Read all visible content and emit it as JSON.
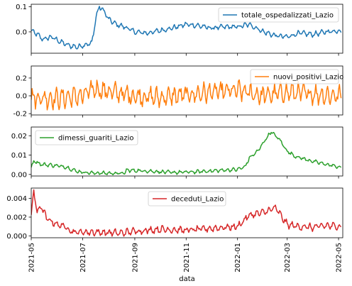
{
  "chart_data": {
    "type": "line",
    "xlabel": "data",
    "x_ticks": [
      "2021-05",
      "2021-07",
      "2021-09",
      "2021-11",
      "2022-01",
      "2022-03",
      "2022-05"
    ],
    "x_range": [
      "2021-05-01",
      "2022-05-06"
    ],
    "shared_x": true,
    "panels": [
      {
        "series": [
          {
            "name": "totale_ospedalizzati_Lazio",
            "color": "#1f77b4",
            "start": "2021-05-01",
            "end": "2022-05-04",
            "knots": [
              [
                "2021-05-01",
                0.005
              ],
              [
                "2021-05-08",
                -0.01
              ],
              [
                "2021-05-15",
                -0.03
              ],
              [
                "2021-05-25",
                -0.02
              ],
              [
                "2021-06-05",
                -0.04
              ],
              [
                "2021-06-15",
                -0.055
              ],
              [
                "2021-06-25",
                -0.06
              ],
              [
                "2021-07-05",
                -0.05
              ],
              [
                "2021-07-12",
                -0.045
              ],
              [
                "2021-07-17",
                0.06
              ],
              [
                "2021-07-21",
                0.1
              ],
              [
                "2021-07-26",
                0.085
              ],
              [
                "2021-08-01",
                0.05
              ],
              [
                "2021-08-10",
                0.03
              ],
              [
                "2021-08-20",
                0.02
              ],
              [
                "2021-09-01",
                0.0
              ],
              [
                "2021-09-15",
                -0.005
              ],
              [
                "2021-10-01",
                0.005
              ],
              [
                "2021-10-15",
                0.015
              ],
              [
                "2021-11-01",
                0.03
              ],
              [
                "2021-11-15",
                0.025
              ],
              [
                "2021-12-01",
                0.015
              ],
              [
                "2021-12-15",
                0.02
              ],
              [
                "2022-01-01",
                0.02
              ],
              [
                "2022-01-15",
                0.03
              ],
              [
                "2022-02-01",
                0.0
              ],
              [
                "2022-02-15",
                -0.015
              ],
              [
                "2022-03-01",
                -0.02
              ],
              [
                "2022-03-15",
                -0.005
              ],
              [
                "2022-04-01",
                -0.01
              ],
              [
                "2022-04-15",
                0.0
              ],
              [
                "2022-05-04",
                0.005
              ]
            ],
            "noise": 0.012,
            "noise_period": 7
          }
        ],
        "ylim": [
          -0.085,
          0.11
        ],
        "yticks": [
          -0.1,
          0.0,
          0.1
        ],
        "ytick_labels": [
          "",
          "0.0",
          "0.1"
        ],
        "legend": "upper right"
      },
      {
        "series": [
          {
            "name": "nuovi_positivi_Lazio",
            "color": "#ff7f0e",
            "start": "2021-05-01",
            "end": "2022-05-04",
            "knots": [
              [
                "2021-05-01",
                -0.02
              ],
              [
                "2021-06-01",
                -0.03
              ],
              [
                "2021-07-01",
                0.0
              ],
              [
                "2021-07-15",
                0.08
              ],
              [
                "2021-08-01",
                0.05
              ],
              [
                "2021-09-01",
                0.0
              ],
              [
                "2021-10-01",
                -0.02
              ],
              [
                "2021-11-01",
                0.01
              ],
              [
                "2021-12-01",
                0.04
              ],
              [
                "2022-01-01",
                0.06
              ],
              [
                "2022-02-01",
                0.0
              ],
              [
                "2022-03-01",
                0.04
              ],
              [
                "2022-04-01",
                0.02
              ],
              [
                "2022-05-04",
                0.0
              ]
            ],
            "noise": 0.13,
            "noise_period": 7
          }
        ],
        "ylim": [
          -0.215,
          0.335
        ],
        "yticks": [
          -0.2,
          0.0,
          0.2
        ],
        "ytick_labels": [
          "-0.2",
          "0.0",
          "0.2"
        ],
        "legend": "upper right"
      },
      {
        "series": [
          {
            "name": "dimessi_guariti_Lazio",
            "color": "#2ca02c",
            "start": "2021-05-01",
            "end": "2022-05-04",
            "knots": [
              [
                "2021-05-01",
                0.004
              ],
              [
                "2021-05-05",
                0.0072
              ],
              [
                "2021-05-12",
                0.0052
              ],
              [
                "2021-05-25",
                0.0048
              ],
              [
                "2021-06-10",
                0.004
              ],
              [
                "2021-06-25",
                0.0015
              ],
              [
                "2021-07-10",
                0.0008
              ],
              [
                "2021-08-10",
                0.0006
              ],
              [
                "2021-08-20",
                0.0006
              ],
              [
                "2021-08-22",
                0.0022
              ],
              [
                "2021-09-15",
                0.0018
              ],
              [
                "2021-10-15",
                0.001
              ],
              [
                "2021-11-15",
                0.0014
              ],
              [
                "2021-12-15",
                0.0022
              ],
              [
                "2022-01-01",
                0.0026
              ],
              [
                "2022-01-10",
                0.004
              ],
              [
                "2022-01-15",
                0.0085
              ],
              [
                "2022-01-25",
                0.012
              ],
              [
                "2022-02-03",
                0.018
              ],
              [
                "2022-02-10",
                0.022
              ],
              [
                "2022-02-20",
                0.018
              ],
              [
                "2022-03-01",
                0.012
              ],
              [
                "2022-03-10",
                0.0095
              ],
              [
                "2022-03-25",
                0.0075
              ],
              [
                "2022-04-10",
                0.0058
              ],
              [
                "2022-04-25",
                0.0045
              ],
              [
                "2022-05-04",
                0.0035
              ]
            ],
            "noise": 0.0011,
            "noise_period": 7
          }
        ],
        "ylim": [
          -0.0008,
          0.0245
        ],
        "yticks": [
          0.0,
          0.01,
          0.02
        ],
        "ytick_labels": [
          "0.00",
          "0.01",
          "0.02"
        ],
        "legend": "upper left"
      },
      {
        "series": [
          {
            "name": "deceduti_Lazio",
            "color": "#d62728",
            "start": "2021-05-01",
            "end": "2022-05-04",
            "knots": [
              [
                "2021-05-01",
                0.0022
              ],
              [
                "2021-05-04",
                0.0048
              ],
              [
                "2021-05-08",
                0.0025
              ],
              [
                "2021-05-12",
                0.0032
              ],
              [
                "2021-05-20",
                0.0018
              ],
              [
                "2021-06-01",
                0.0012
              ],
              [
                "2021-06-10",
                0.001
              ],
              [
                "2021-06-20",
                0.0004
              ],
              [
                "2021-07-15",
                0.0004
              ],
              [
                "2021-08-15",
                0.0003
              ],
              [
                "2021-09-01",
                0.0005
              ],
              [
                "2021-10-01",
                0.0007
              ],
              [
                "2021-11-01",
                0.0006
              ],
              [
                "2021-12-01",
                0.0008
              ],
              [
                "2022-01-01",
                0.001
              ],
              [
                "2022-01-15",
                0.0022
              ],
              [
                "2022-02-01",
                0.0025
              ],
              [
                "2022-02-15",
                0.003
              ],
              [
                "2022-03-01",
                0.0012
              ],
              [
                "2022-03-15",
                0.001
              ],
              [
                "2022-04-01",
                0.0009
              ],
              [
                "2022-04-15",
                0.0011
              ],
              [
                "2022-05-04",
                0.001
              ]
            ],
            "noise": 0.00045,
            "noise_period": 7
          }
        ],
        "ylim": [
          -0.0002,
          0.0051
        ],
        "yticks": [
          0.0,
          0.002,
          0.004
        ],
        "ytick_labels": [
          "0.000",
          "0.002",
          "0.004"
        ],
        "legend": "upper center"
      }
    ]
  }
}
